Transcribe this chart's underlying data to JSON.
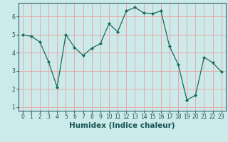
{
  "x": [
    0,
    1,
    2,
    3,
    4,
    5,
    6,
    7,
    8,
    9,
    10,
    11,
    12,
    13,
    14,
    15,
    16,
    17,
    18,
    19,
    20,
    21,
    22,
    23
  ],
  "y": [
    5.0,
    4.9,
    4.6,
    3.5,
    2.1,
    5.0,
    4.3,
    3.85,
    4.25,
    4.5,
    5.6,
    5.15,
    6.3,
    6.5,
    6.2,
    6.15,
    6.3,
    4.35,
    3.35,
    1.4,
    1.65,
    3.75,
    3.45,
    2.95
  ],
  "line_color": "#1a6b5a",
  "marker": "D",
  "marker_size": 2.2,
  "bg_color": "#cceaea",
  "grid_color": "#e8aaaa",
  "xlabel": "Humidex (Indice chaleur)",
  "xlim": [
    -0.5,
    23.5
  ],
  "ylim": [
    0.8,
    6.75
  ],
  "xticks": [
    0,
    1,
    2,
    3,
    4,
    5,
    6,
    7,
    8,
    9,
    10,
    11,
    12,
    13,
    14,
    15,
    16,
    17,
    18,
    19,
    20,
    21,
    22,
    23
  ],
  "yticks": [
    1,
    2,
    3,
    4,
    5,
    6
  ],
  "tick_fontsize": 5.5,
  "label_fontsize": 7.5
}
